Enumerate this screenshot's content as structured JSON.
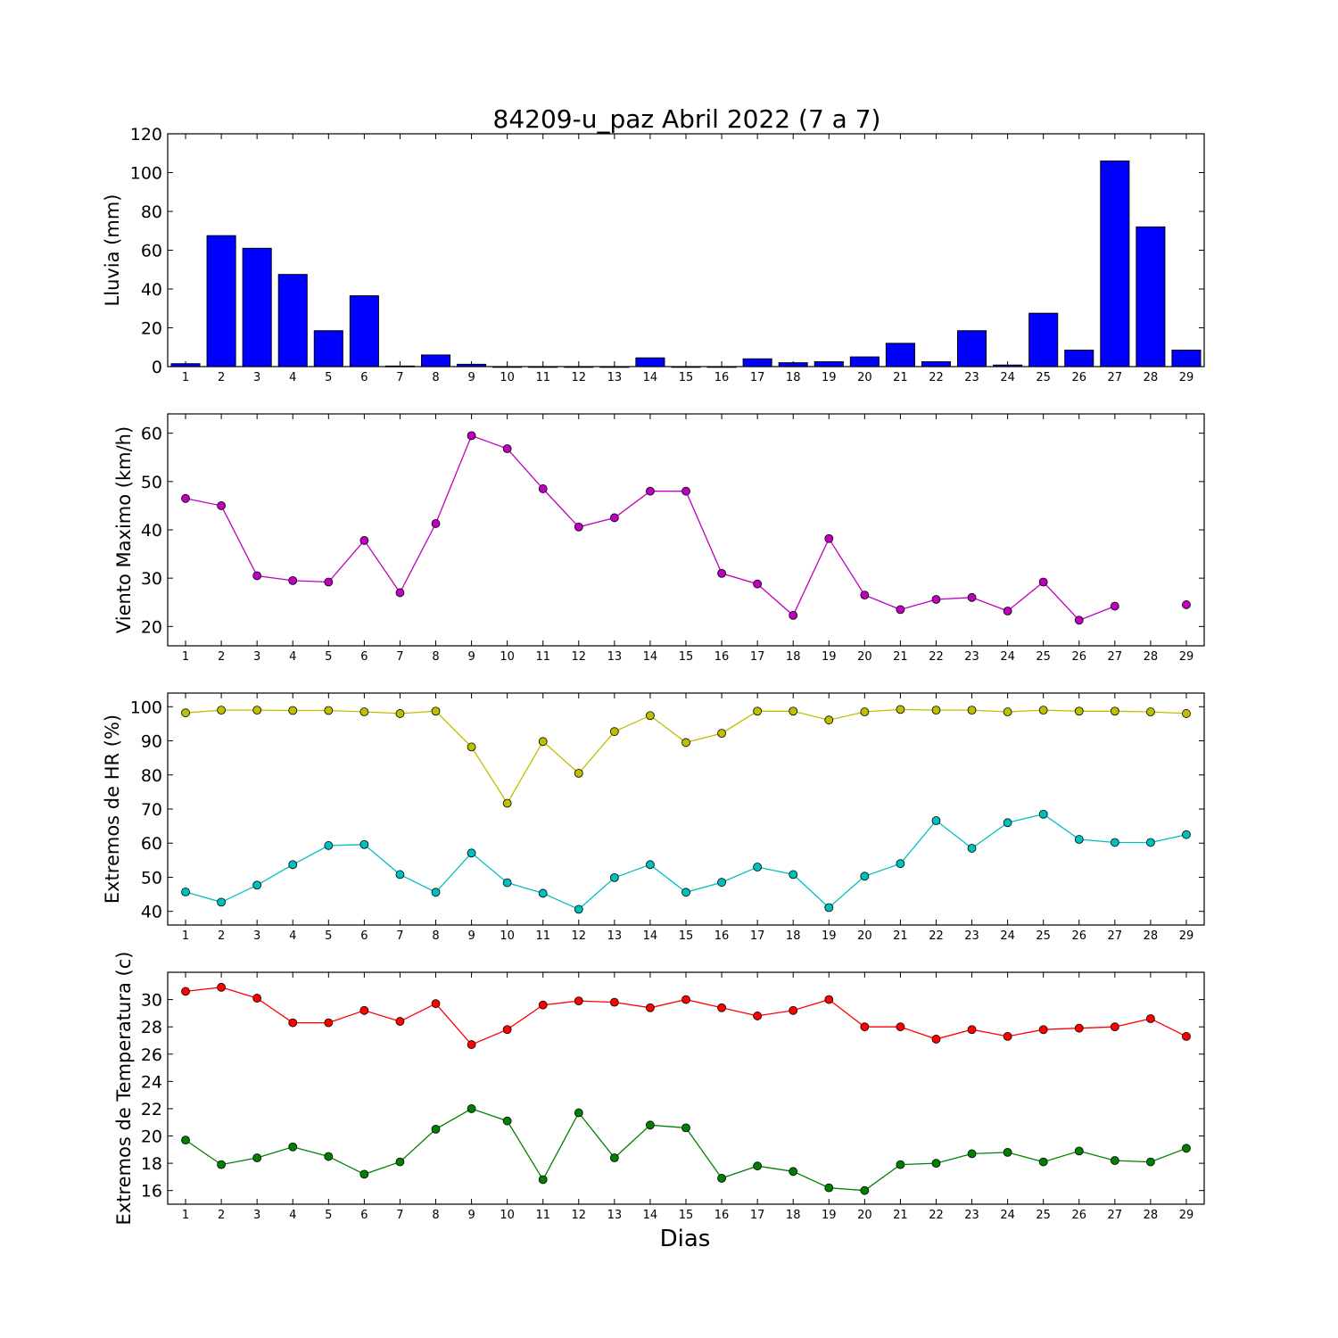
{
  "title": "84209-u_paz Abril 2022  (7 a 7)",
  "xlabel": "Dias",
  "chart_data": [
    {
      "type": "bar",
      "ylabel": "Lluvia (mm)",
      "ylim": [
        0,
        120
      ],
      "yticks": [
        0,
        20,
        40,
        60,
        80,
        100,
        120
      ],
      "x": [
        1,
        2,
        3,
        4,
        5,
        6,
        7,
        8,
        9,
        10,
        11,
        12,
        13,
        14,
        15,
        16,
        17,
        18,
        19,
        20,
        21,
        22,
        23,
        24,
        25,
        26,
        27,
        28,
        29
      ],
      "series": [
        {
          "color": "#0000ff",
          "values": [
            1.5,
            67.5,
            61,
            47.5,
            18.5,
            36.5,
            0.3,
            6,
            1.2,
            0,
            0,
            0,
            0,
            4.5,
            0,
            0,
            4,
            2,
            2.5,
            5,
            12,
            2.5,
            18.5,
            0.8,
            27.5,
            8.5,
            106,
            72,
            8.5
          ]
        }
      ]
    },
    {
      "type": "line",
      "ylabel": "Viento Maximo (km/h)",
      "ylim": [
        16,
        64
      ],
      "yticks": [
        20,
        30,
        40,
        50,
        60
      ],
      "x": [
        1,
        2,
        3,
        4,
        5,
        6,
        7,
        8,
        9,
        10,
        11,
        12,
        13,
        14,
        15,
        16,
        17,
        18,
        19,
        20,
        21,
        22,
        23,
        24,
        25,
        26,
        27,
        28,
        29
      ],
      "series": [
        {
          "color": "#bf00bf",
          "values": [
            46.5,
            45,
            30.5,
            29.5,
            29.2,
            37.8,
            27,
            41.3,
            59.5,
            56.8,
            48.5,
            40.6,
            42.5,
            48,
            48,
            31,
            28.8,
            22.3,
            38.2,
            26.5,
            23.5,
            25.6,
            26,
            23.2,
            29.2,
            21.3,
            24.2,
            null,
            24.5
          ]
        }
      ]
    },
    {
      "type": "line",
      "ylabel": "Extremos de HR (%)",
      "ylim": [
        36,
        104
      ],
      "yticks": [
        40,
        50,
        60,
        70,
        80,
        90,
        100
      ],
      "x": [
        1,
        2,
        3,
        4,
        5,
        6,
        7,
        8,
        9,
        10,
        11,
        12,
        13,
        14,
        15,
        16,
        17,
        18,
        19,
        20,
        21,
        22,
        23,
        24,
        25,
        26,
        27,
        28,
        29
      ],
      "series": [
        {
          "color": "#bfbf00",
          "values": [
            98.2,
            99,
            99,
            98.9,
            98.9,
            98.5,
            98,
            98.7,
            88.2,
            71.7,
            89.8,
            80.5,
            92.7,
            97.4,
            89.5,
            92.2,
            98.7,
            98.7,
            96.1,
            98.5,
            99.2,
            99,
            99,
            98.5,
            99,
            98.7,
            98.7,
            98.5,
            98
          ]
        },
        {
          "color": "#00bfbf",
          "values": [
            45.7,
            42.7,
            47.7,
            53.7,
            59.3,
            59.6,
            50.8,
            45.6,
            57.1,
            48.4,
            45.3,
            40.6,
            49.9,
            53.7,
            45.6,
            48.5,
            53,
            50.8,
            41.1,
            50.3,
            54,
            66.6,
            58.5,
            66,
            68.5,
            61.1,
            60.2,
            60.2,
            62.5
          ]
        }
      ]
    },
    {
      "type": "line",
      "ylabel": "Extremos de Temperatura (c)",
      "ylim": [
        15,
        32
      ],
      "yticks": [
        16,
        18,
        20,
        22,
        24,
        26,
        28,
        30
      ],
      "x": [
        1,
        2,
        3,
        4,
        5,
        6,
        7,
        8,
        9,
        10,
        11,
        12,
        13,
        14,
        15,
        16,
        17,
        18,
        19,
        20,
        21,
        22,
        23,
        24,
        25,
        26,
        27,
        28,
        29
      ],
      "series": [
        {
          "color": "#ff0000",
          "values": [
            30.6,
            30.9,
            30.1,
            28.3,
            28.3,
            29.2,
            28.4,
            29.7,
            26.7,
            27.8,
            29.6,
            29.9,
            29.8,
            29.4,
            30,
            29.4,
            28.8,
            29.2,
            30,
            28,
            28,
            27.1,
            27.8,
            27.3,
            27.8,
            27.9,
            28,
            28.6,
            27.3
          ]
        },
        {
          "color": "#008000",
          "values": [
            19.7,
            17.9,
            18.4,
            19.2,
            18.5,
            17.2,
            18.1,
            20.5,
            22,
            21.1,
            16.8,
            21.7,
            18.4,
            20.8,
            20.6,
            16.9,
            17.8,
            17.4,
            16.2,
            16,
            17.9,
            18,
            18.7,
            18.8,
            18.1,
            18.9,
            18.2,
            18.1,
            19.1
          ]
        }
      ]
    }
  ]
}
